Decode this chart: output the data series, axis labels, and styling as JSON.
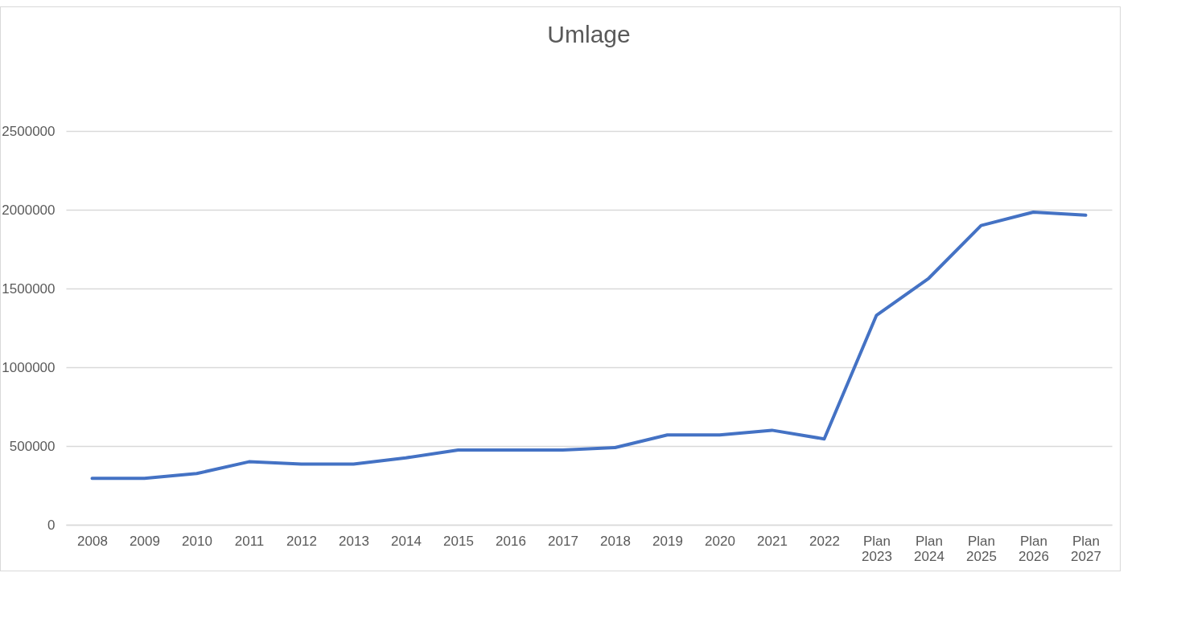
{
  "chart_data": {
    "type": "line",
    "title": "Umlage",
    "categories": [
      "2008",
      "2009",
      "2010",
      "2011",
      "2012",
      "2013",
      "2014",
      "2015",
      "2016",
      "2017",
      "2018",
      "2019",
      "2020",
      "2021",
      "2022",
      "Plan 2023",
      "Plan 2024",
      "Plan 2025",
      "Plan 2026",
      "Plan 2027"
    ],
    "series": [
      {
        "color": "#4472c4",
        "values": [
          295000,
          295000,
          325000,
          400000,
          385000,
          385000,
          425000,
          475000,
          475000,
          475000,
          490000,
          570000,
          570000,
          600000,
          545000,
          1330000,
          1565000,
          1900000,
          1985000,
          1965000
        ]
      }
    ],
    "ylim": [
      0,
      2500000
    ],
    "yticks": [
      0,
      500000,
      1000000,
      1500000,
      2000000,
      2500000
    ],
    "grid": "y",
    "marker": "none",
    "line_style": "solid"
  }
}
